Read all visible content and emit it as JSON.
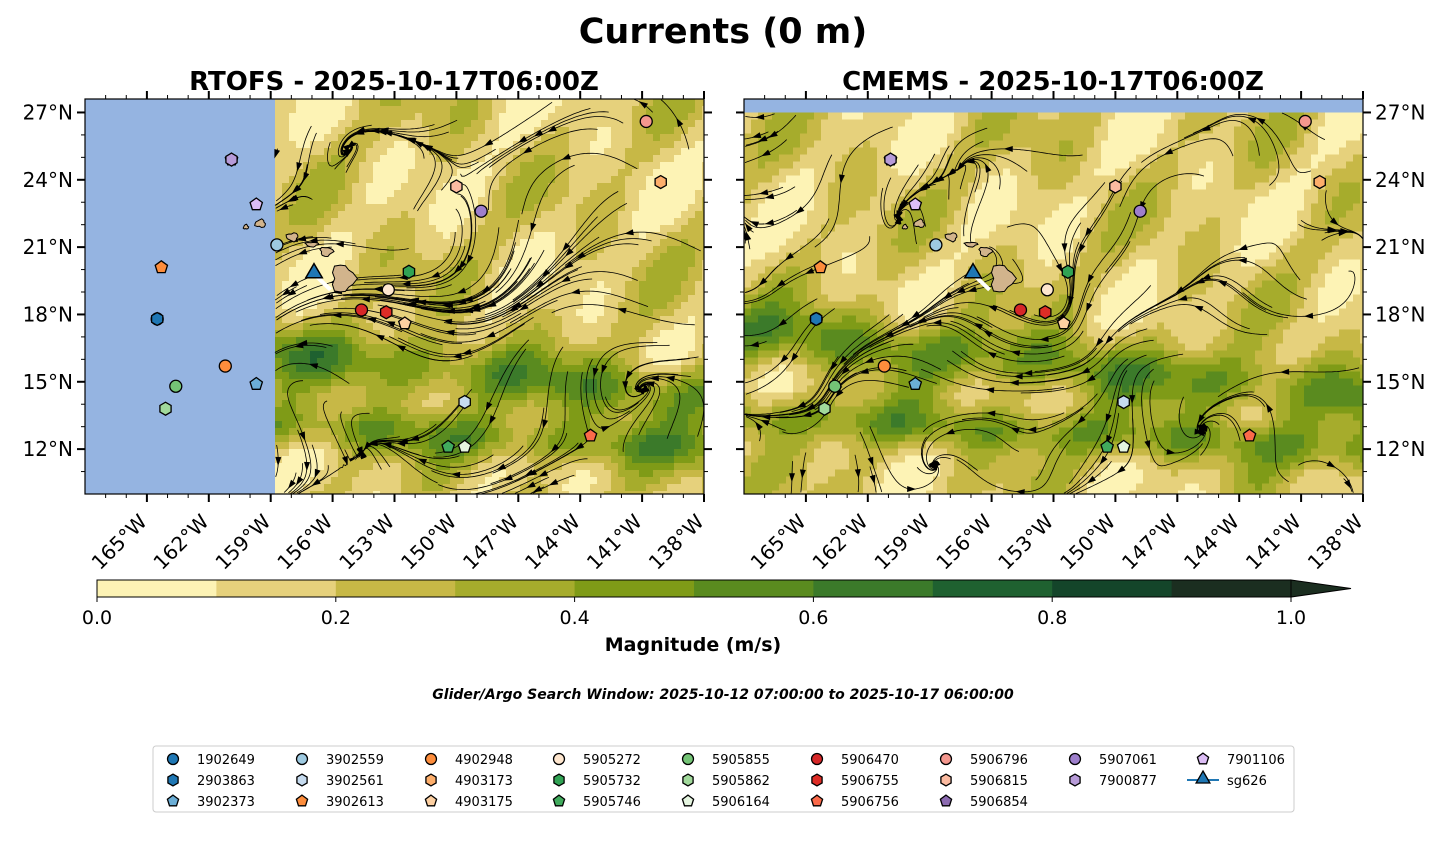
{
  "suptitle": "Currents (0 m)",
  "window_text": "Glider/Argo Search Window: 2025-10-12 07:00:00 to 2025-10-17 06:00:00",
  "colors": {
    "land": "#d2b48c",
    "nodata": "#95b4e1",
    "levels": [
      "#fdf3b5",
      "#e6d17c",
      "#c7b846",
      "#a6ac2c",
      "#7f9b17",
      "#5a8b1f",
      "#3b7a2a",
      "#1f6130",
      "#14452a",
      "#1b2e20"
    ]
  },
  "chart_data": {
    "type": "heatmap",
    "title": "Currents (0 m)",
    "xlim": [
      -168,
      -138
    ],
    "ylim": [
      10,
      27.6
    ],
    "xticks": [
      -165,
      -162,
      -159,
      -156,
      -153,
      -150,
      -147,
      -144,
      -141,
      -138
    ],
    "xtick_labels": [
      "165°W",
      "162°W",
      "159°W",
      "156°W",
      "153°W",
      "150°W",
      "147°W",
      "144°W",
      "141°W",
      "138°W"
    ],
    "yticks": [
      12,
      15,
      18,
      21,
      24,
      27
    ],
    "ytick_labels": [
      "12°N",
      "15°N",
      "18°N",
      "21°N",
      "24°N",
      "27°N"
    ],
    "colorbar": {
      "label": "Magnitude (m/s)",
      "levels": [
        0.0,
        0.1,
        0.2,
        0.3,
        0.4,
        0.5,
        0.6,
        0.7,
        0.8,
        0.9,
        1.0
      ],
      "ticks": [
        0.0,
        0.2,
        0.4,
        0.6,
        0.8,
        1.0
      ],
      "tick_labels": [
        "0.0",
        "0.2",
        "0.4",
        "0.6",
        "0.8",
        "1.0"
      ],
      "extend": "max"
    },
    "panels": [
      {
        "title": "RTOFS - 2025-10-17T06:00Z",
        "yaxis": "left",
        "data_lon_min": -158.8,
        "data_lat_min": 10,
        "data_lat_max": 27.6
      },
      {
        "title": "CMEMS - 2025-10-17T06:00Z",
        "yaxis": "right",
        "data_lon_min": -168,
        "data_lat_min": 10,
        "data_lat_max": 27
      }
    ],
    "islands": [
      {
        "name": "Hawaii",
        "lon": -155.5,
        "lat": 19.6,
        "rlon": 0.55,
        "rlat": 0.6
      },
      {
        "name": "Maui",
        "lon": -156.3,
        "lat": 20.8,
        "rlon": 0.3,
        "rlat": 0.2
      },
      {
        "name": "Molokai",
        "lon": -157.0,
        "lat": 21.12,
        "rlon": 0.3,
        "rlat": 0.1
      },
      {
        "name": "Oahu",
        "lon": -157.95,
        "lat": 21.45,
        "rlon": 0.28,
        "rlat": 0.18
      },
      {
        "name": "Kauai",
        "lon": -159.5,
        "lat": 22.05,
        "rlon": 0.25,
        "rlat": 0.17
      },
      {
        "name": "Niihau",
        "lon": -160.2,
        "lat": 21.9,
        "rlon": 0.12,
        "rlat": 0.1
      }
    ],
    "glider": {
      "name": "sg626",
      "lon": -156.9,
      "lat": 19.8,
      "track": [
        [
          -156.9,
          19.8
        ],
        [
          -156.1,
          19.1
        ]
      ],
      "color": "#1f77b4"
    },
    "floats": [
      {
        "id": "1902649",
        "lon": -164.5,
        "lat": 17.8,
        "marker": "circle",
        "color": "#1f77b4"
      },
      {
        "id": "2903863",
        "lon": -164.5,
        "lat": 17.8,
        "marker": "hexagon",
        "color": "#1f77b4"
      },
      {
        "id": "3902373",
        "lon": -159.7,
        "lat": 14.9,
        "marker": "pentagon",
        "color": "#6baed6"
      },
      {
        "id": "3902559",
        "lon": -158.7,
        "lat": 21.1,
        "marker": "circle",
        "color": "#9ecae1"
      },
      {
        "id": "3902561",
        "lon": -149.6,
        "lat": 14.1,
        "marker": "hexagon",
        "color": "#c6dbef"
      },
      {
        "id": "3902613",
        "lon": -164.3,
        "lat": 20.1,
        "marker": "pentagon",
        "color": "#fd8d3c"
      },
      {
        "id": "4902948",
        "lon": -161.2,
        "lat": 15.7,
        "marker": "circle",
        "color": "#fd8d3c"
      },
      {
        "id": "4903173",
        "lon": -140.1,
        "lat": 23.9,
        "marker": "hexagon",
        "color": "#fdae6b"
      },
      {
        "id": "4903175",
        "lon": -152.5,
        "lat": 17.6,
        "marker": "pentagon",
        "color": "#fdd0a2"
      },
      {
        "id": "5905272",
        "lon": -153.3,
        "lat": 19.1,
        "marker": "circle",
        "color": "#fee6ce"
      },
      {
        "id": "5905732",
        "lon": -152.3,
        "lat": 19.9,
        "marker": "hexagon",
        "color": "#31a354"
      },
      {
        "id": "5905746",
        "lon": -150.4,
        "lat": 12.1,
        "marker": "pentagon",
        "color": "#41ab5d"
      },
      {
        "id": "5905855",
        "lon": -163.6,
        "lat": 14.8,
        "marker": "circle",
        "color": "#74c476"
      },
      {
        "id": "5905862",
        "lon": -164.1,
        "lat": 13.8,
        "marker": "hexagon",
        "color": "#a1d99b"
      },
      {
        "id": "5906164",
        "lon": -149.6,
        "lat": 12.1,
        "marker": "pentagon",
        "color": "#e5f5e0"
      },
      {
        "id": "5906470",
        "lon": -154.6,
        "lat": 18.2,
        "marker": "circle",
        "color": "#d62728"
      },
      {
        "id": "5906755",
        "lon": -153.4,
        "lat": 18.1,
        "marker": "hexagon",
        "color": "#de2d26"
      },
      {
        "id": "5906756",
        "lon": -143.5,
        "lat": 12.6,
        "marker": "pentagon",
        "color": "#fb6a4a"
      },
      {
        "id": "5906796",
        "lon": -140.8,
        "lat": 26.6,
        "marker": "circle",
        "color": "#f4978e"
      },
      {
        "id": "5906815",
        "lon": -150.0,
        "lat": 23.7,
        "marker": "hexagon",
        "color": "#fcbba1"
      },
      {
        "id": "5906854",
        "lon": -160.9,
        "lat": 24.9,
        "marker": "pentagon",
        "color": "#8c6bb1"
      },
      {
        "id": "5907061",
        "lon": -148.8,
        "lat": 22.6,
        "marker": "circle",
        "color": "#9e7fcc"
      },
      {
        "id": "7900877",
        "lon": -160.9,
        "lat": 24.9,
        "marker": "hexagon",
        "color": "#b79bd8"
      },
      {
        "id": "7901106",
        "lon": -159.7,
        "lat": 22.9,
        "marker": "pentagon",
        "color": "#dcbdf5"
      }
    ]
  },
  "legend": {
    "columns": [
      [
        "1902649",
        "2903863",
        "3902373"
      ],
      [
        "3902559",
        "3902561",
        "3902613"
      ],
      [
        "4902948",
        "4903173",
        "4903175"
      ],
      [
        "5905272",
        "5905732",
        "5905746"
      ],
      [
        "5905855",
        "5905862",
        "5906164"
      ],
      [
        "5906470",
        "5906755",
        "5906756"
      ],
      [
        "5906796",
        "5906815",
        "5906854"
      ],
      [
        "5907061",
        "7900877"
      ],
      [
        "7901106",
        "sg626"
      ]
    ]
  }
}
